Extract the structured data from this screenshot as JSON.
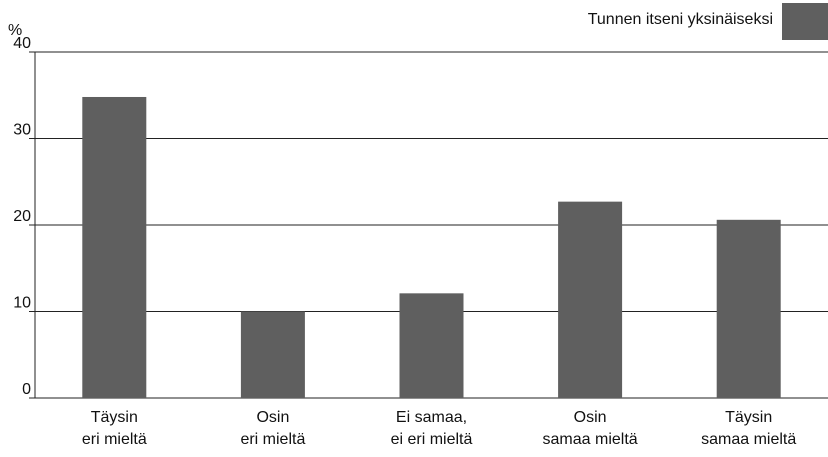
{
  "chart_data": {
    "type": "bar",
    "y_unit": "%",
    "legend": "Tunnen itseni yksinäiseksi",
    "categories": [
      [
        "Täysin",
        "eri mieltä"
      ],
      [
        "Osin",
        "eri mieltä"
      ],
      [
        "Ei samaa,",
        "ei eri mieltä"
      ],
      [
        "Osin",
        "samaa mieltä"
      ],
      [
        "Täysin",
        "samaa mieltä"
      ]
    ],
    "values": [
      34.8,
      10.0,
      12.1,
      22.7,
      20.6
    ],
    "color": "#5f5f5f",
    "ylim": [
      0,
      40
    ],
    "yticks": [
      0,
      10,
      20,
      30,
      40
    ],
    "grid": true
  }
}
